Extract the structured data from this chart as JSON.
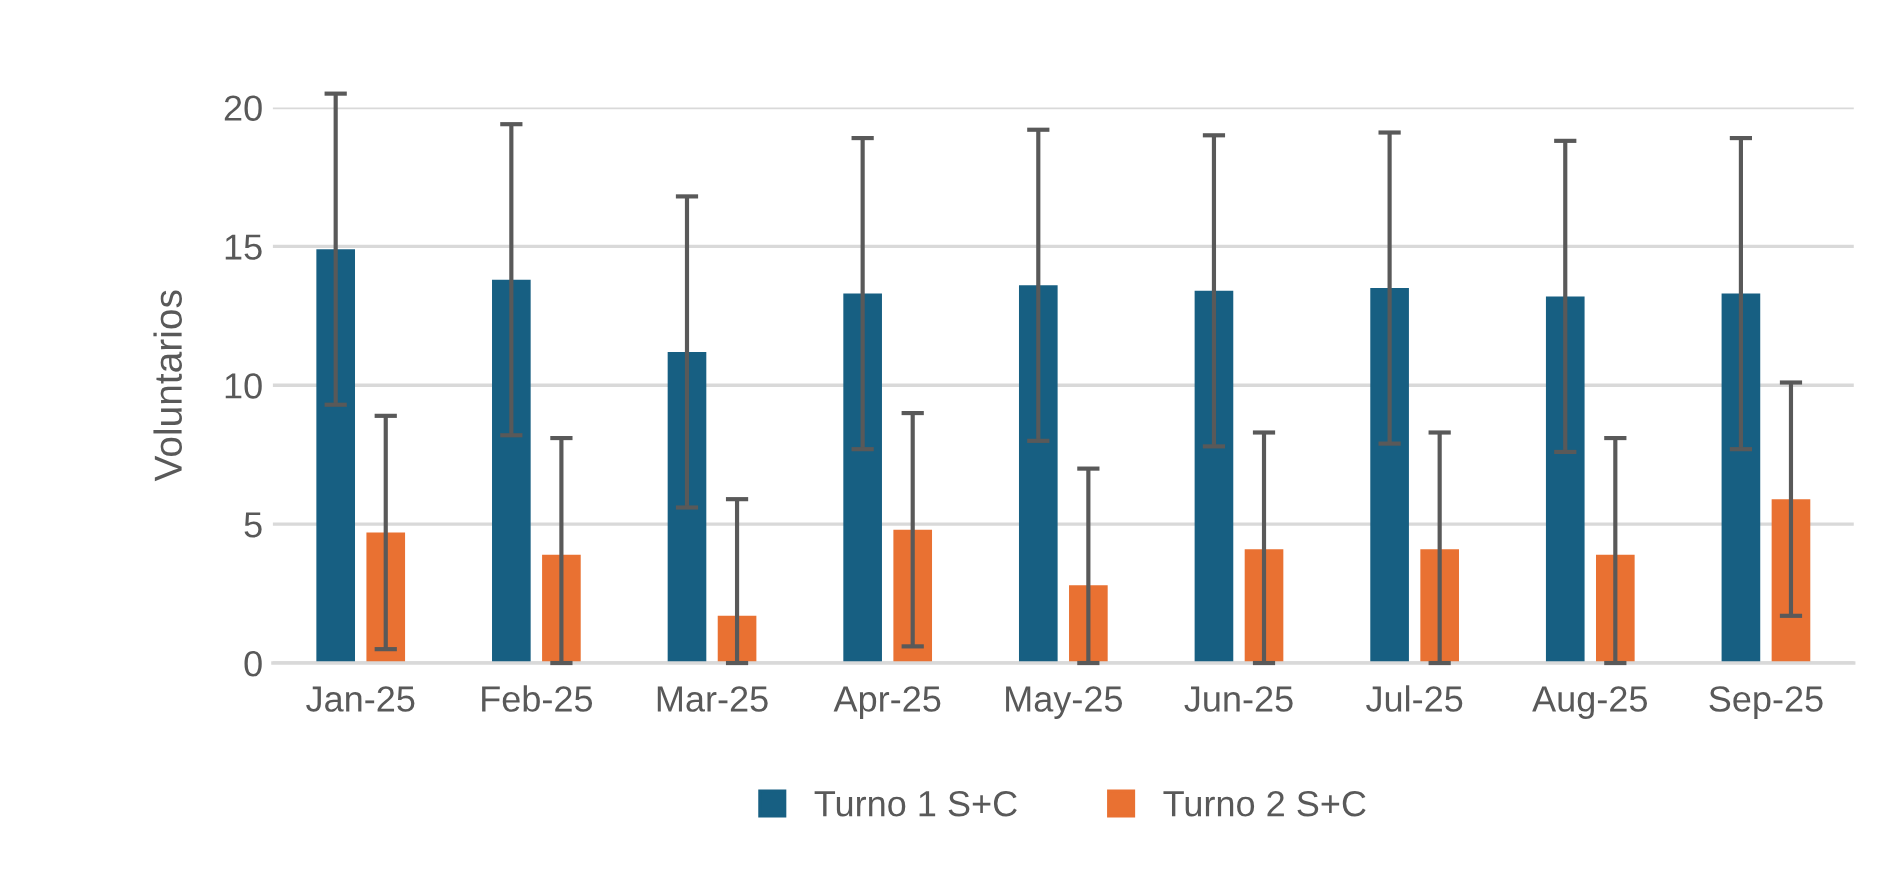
{
  "chart_data": {
    "type": "bar",
    "ylabel": "Voluntarios",
    "categories": [
      "Jan-25",
      "Feb-25",
      "Mar-25",
      "Apr-25",
      "May-25",
      "Jun-25",
      "Jul-25",
      "Aug-25",
      "Sep-25"
    ],
    "series": [
      {
        "name": "Turno 1 S+C",
        "color": "#175f82",
        "values": [
          14.9,
          13.8,
          11.2,
          13.3,
          13.6,
          13.4,
          13.5,
          13.2,
          13.3
        ],
        "errors": [
          5.6,
          5.6,
          5.6,
          5.6,
          5.6,
          5.6,
          5.6,
          5.6,
          5.6
        ]
      },
      {
        "name": "Turno 2 S+C",
        "color": "#e97132",
        "values": [
          4.7,
          3.9,
          1.7,
          4.8,
          2.8,
          4.1,
          4.1,
          3.9,
          5.9
        ],
        "errors": [
          4.2,
          [
            0,
            8.1
          ],
          [
            0,
            5.9
          ],
          4.2,
          [
            0,
            7.0
          ],
          [
            0,
            8.3
          ],
          [
            0,
            8.3
          ],
          [
            0,
            8.1
          ],
          4.2
        ]
      }
    ],
    "ylim": [
      0,
      20
    ],
    "yticks": [
      0,
      5,
      10,
      15,
      20
    ],
    "grid": "y",
    "legend": "bottom"
  }
}
